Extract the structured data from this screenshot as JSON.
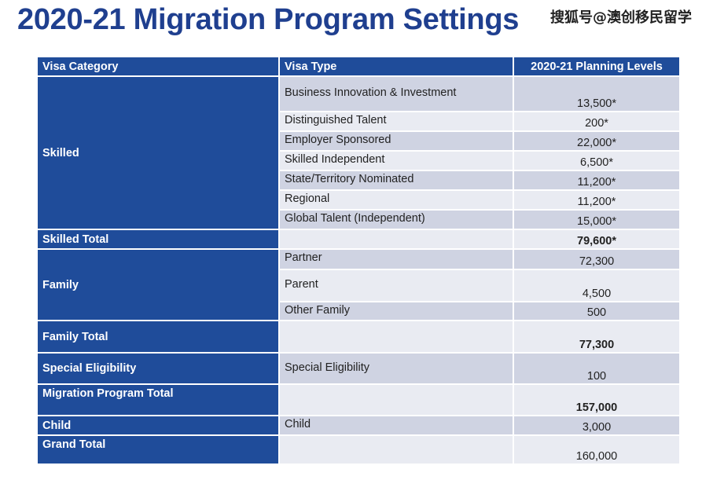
{
  "title": "2020-21 Migration Program Settings",
  "watermark": "搜狐号@澳创移民留学",
  "colors": {
    "header_blue": "#1f4c9a",
    "title_blue": "#1f3f8f",
    "row_dark": "#cfd3e2",
    "row_light": "#e9ebf2"
  },
  "table": {
    "headers": [
      "Visa Category",
      "Visa Type",
      "2020-21 Planning Levels"
    ],
    "categories": {
      "skilled": "Skilled",
      "skilled_total": "Skilled Total",
      "family": "Family",
      "family_total": "Family Total",
      "special": "Special Eligibility",
      "program_total": "Migration Program Total",
      "child": "Child",
      "grand_total": "Grand Total"
    },
    "rows": [
      {
        "type": "Business Innovation & Investment",
        "value": "13,500*"
      },
      {
        "type": "Distinguished Talent",
        "value": "200*"
      },
      {
        "type": "Employer Sponsored",
        "value": "22,000*"
      },
      {
        "type": "Skilled Independent",
        "value": "6,500*"
      },
      {
        "type": "State/Territory Nominated",
        "value": "11,200*"
      },
      {
        "type": "Regional",
        "value": "11,200*"
      },
      {
        "type": "Global Talent (Independent)",
        "value": "15,000*"
      },
      {
        "type": "",
        "value": "79,600*"
      },
      {
        "type": "Partner",
        "value": "72,300"
      },
      {
        "type": "Parent",
        "value": "4,500"
      },
      {
        "type": "Other Family",
        "value": "500"
      },
      {
        "type": "",
        "value": "77,300"
      },
      {
        "type": "Special Eligibility",
        "value": "100"
      },
      {
        "type": "",
        "value": "157,000"
      },
      {
        "type": "Child",
        "value": "3,000"
      },
      {
        "type": "",
        "value": "160,000"
      }
    ]
  }
}
